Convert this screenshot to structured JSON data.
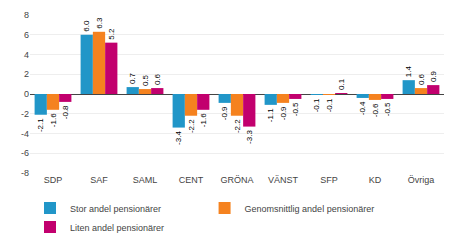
{
  "chart_data": {
    "type": "bar",
    "categories": [
      "SDP",
      "SAF",
      "SAML",
      "CENT",
      "GRÖNA",
      "VÄNST",
      "SFP",
      "KD",
      "Övriga"
    ],
    "series": [
      {
        "name": "Stor andel pensionärer",
        "color": "#2196c8",
        "values": [
          -2.1,
          6.0,
          0.7,
          -3.4,
          -0.9,
          -1.1,
          -0.1,
          -0.4,
          1.4
        ],
        "value_labels": [
          "-2.1",
          "6.0",
          "0.7",
          "-3.4",
          "-0.9",
          "-1.1",
          "-0.1",
          "-0.4",
          "1.4"
        ]
      },
      {
        "name": "Genomsnittlig andel pensionärer",
        "color": "#f5821f",
        "values": [
          -1.6,
          6.3,
          0.5,
          -2.2,
          -2.2,
          -0.9,
          -0.1,
          -0.6,
          0.6
        ],
        "value_labels": [
          "-1.6",
          "6.3",
          "0.5",
          "-2.2",
          "-2.2",
          "-0.9",
          "-0.1",
          "-0.6",
          "0.6"
        ]
      },
      {
        "name": "Liten andel pensionärer",
        "color": "#c2006e",
        "values": [
          -0.8,
          5.2,
          0.6,
          -1.6,
          -3.3,
          -0.5,
          0.1,
          -0.5,
          0.9
        ],
        "value_labels": [
          "-0.8",
          "5.2",
          "0.6",
          "-1.6",
          "-3.3",
          "-0.5",
          "0.1",
          "-0.5",
          "0.9"
        ]
      }
    ],
    "ylim": [
      -8,
      8
    ],
    "yticks": [
      -8,
      -6,
      -4,
      -2,
      0,
      2,
      4,
      6,
      8
    ],
    "grid": true,
    "data_labels": true,
    "legend": "bottom"
  }
}
